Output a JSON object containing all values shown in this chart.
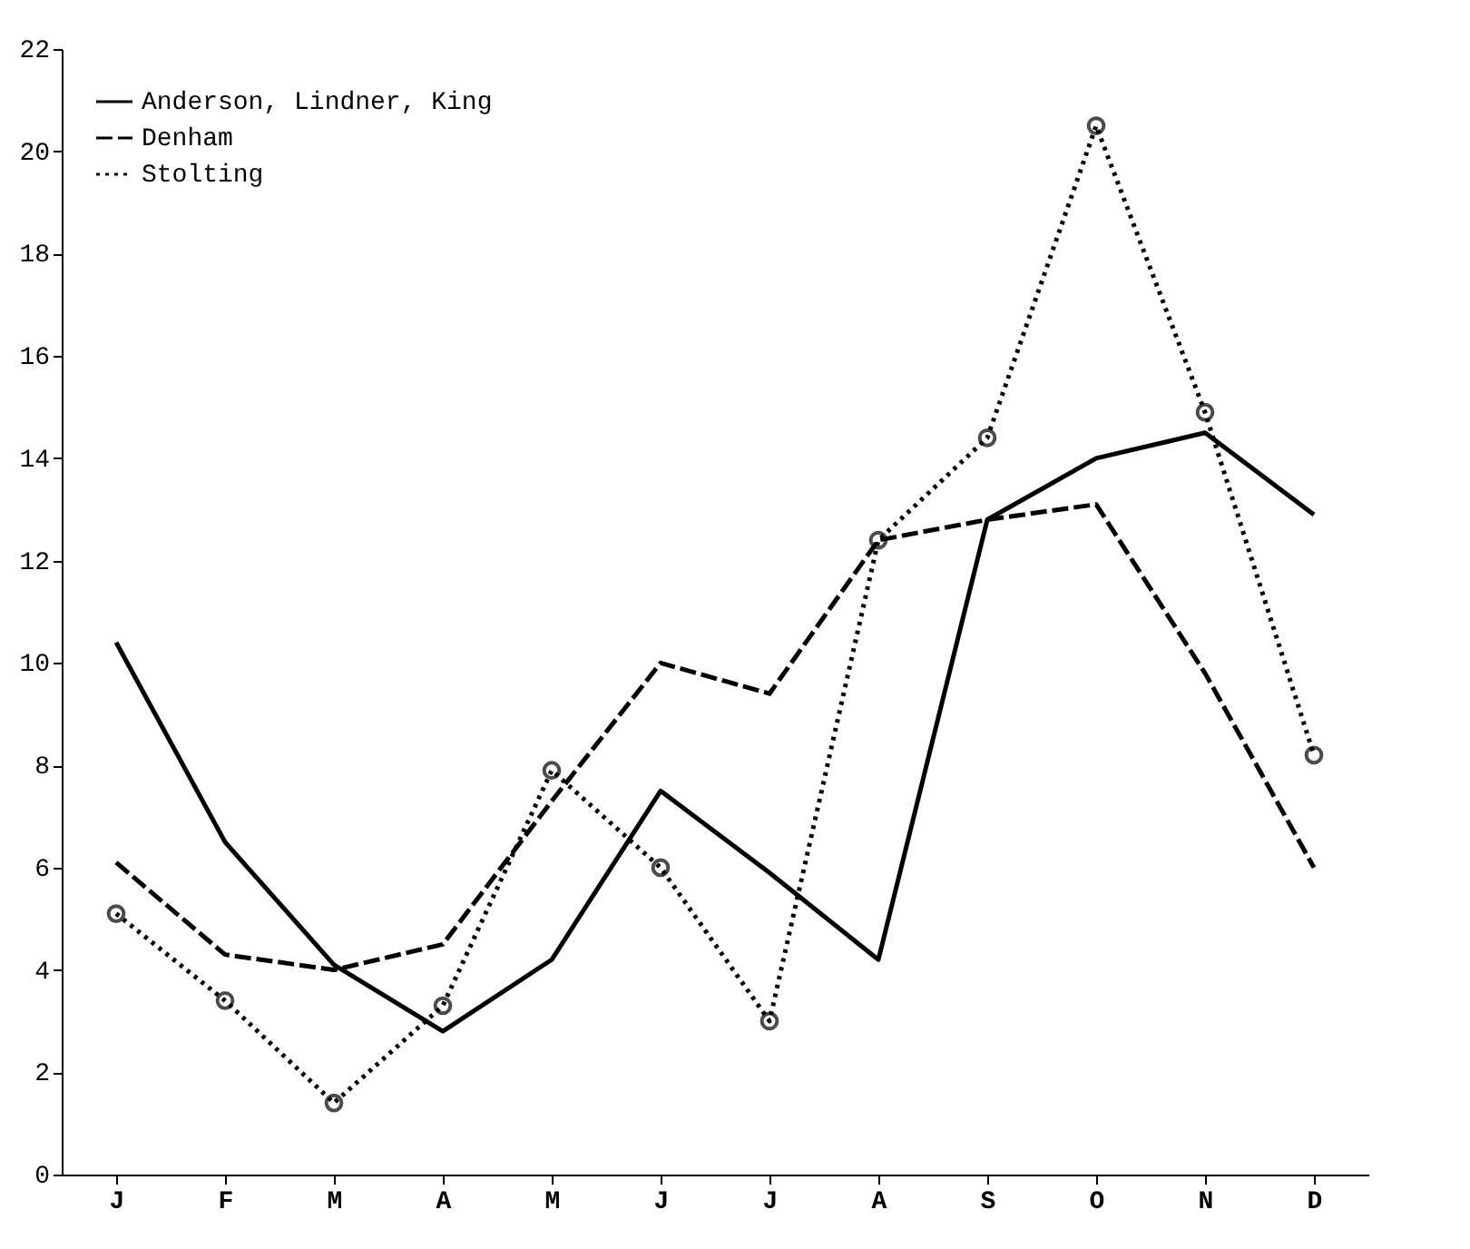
{
  "chart_data": {
    "type": "line",
    "categories": [
      "J",
      "F",
      "M",
      "A",
      "M",
      "J",
      "J",
      "A",
      "S",
      "O",
      "N",
      "D"
    ],
    "series": [
      {
        "name": "Anderson, Lindner, King",
        "color": "#000000",
        "line_style": "solid",
        "marker": "none",
        "values": [
          10.4,
          6.5,
          4.1,
          2.8,
          4.2,
          7.5,
          5.9,
          4.2,
          12.8,
          14.0,
          14.5,
          12.9
        ]
      },
      {
        "name": "Denham",
        "color": "#000000",
        "line_style": "dashed",
        "marker": "none",
        "values": [
          6.1,
          4.3,
          4.0,
          4.5,
          7.3,
          10.0,
          9.4,
          12.4,
          12.8,
          13.1,
          9.8,
          6.0
        ]
      },
      {
        "name": "Stolting",
        "color": "#000000",
        "line_style": "dotted",
        "marker": "circle",
        "values": [
          5.1,
          3.4,
          1.4,
          3.3,
          7.9,
          6.0,
          3.0,
          12.4,
          14.4,
          20.5,
          14.9,
          8.2
        ]
      }
    ],
    "ylim": [
      0,
      22
    ],
    "yticks": [
      0,
      2,
      4,
      6,
      8,
      10,
      12,
      14,
      16,
      18,
      20,
      22
    ],
    "grid": false,
    "legend": "top left"
  }
}
